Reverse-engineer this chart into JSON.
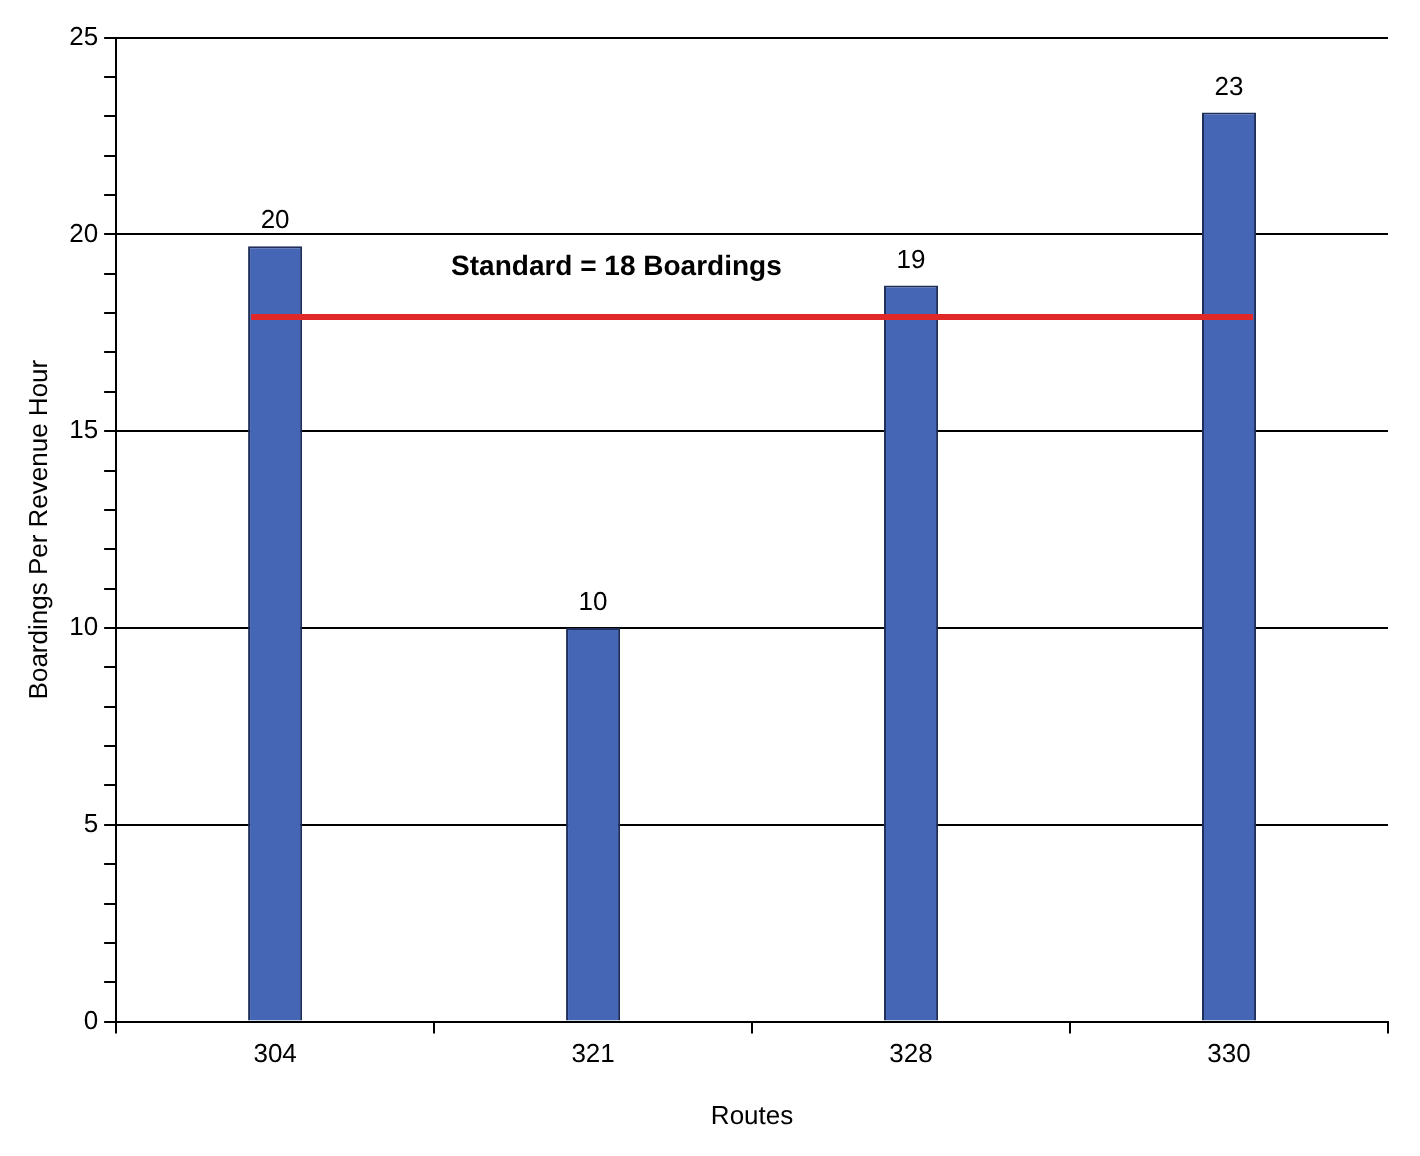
{
  "chart_data": {
    "type": "bar",
    "xlabel": "Routes",
    "ylabel": "Boardings Per Revenue Hour",
    "categories": [
      "304",
      "321",
      "328",
      "330"
    ],
    "values": [
      19.7,
      10,
      18.7,
      23.1
    ],
    "value_labels": [
      "20",
      "10",
      "19",
      "23"
    ],
    "color": "#4466b4",
    "ylim": [
      0,
      25
    ],
    "yticks": [
      0,
      {
        "value": 1,
        "label": null
      },
      {
        "value": 2,
        "label": null
      },
      {
        "value": 3,
        "label": null
      },
      {
        "value": 4,
        "label": null
      },
      5,
      {
        "value": 6,
        "label": null
      },
      {
        "value": 7,
        "label": null
      },
      {
        "value": 8,
        "label": null
      },
      {
        "value": 9,
        "label": null
      },
      10,
      {
        "value": 11,
        "label": null
      },
      {
        "value": 12,
        "label": null
      },
      {
        "value": 13,
        "label": null
      },
      {
        "value": 14,
        "label": null
      },
      15,
      {
        "value": 16,
        "label": null
      },
      {
        "value": 17,
        "label": null
      },
      {
        "value": 18,
        "label": null
      },
      {
        "value": 19,
        "label": null
      },
      20,
      {
        "value": 21,
        "label": null
      },
      {
        "value": 22,
        "label": null
      },
      {
        "value": 23,
        "label": null
      },
      {
        "value": 24,
        "label": null
      },
      25
    ],
    "grid": "y",
    "ref_lines": [
      {
        "axis": "y",
        "value": 17.9,
        "label": "Standard = 18 Boardings",
        "color": "#e02828"
      }
    ]
  }
}
